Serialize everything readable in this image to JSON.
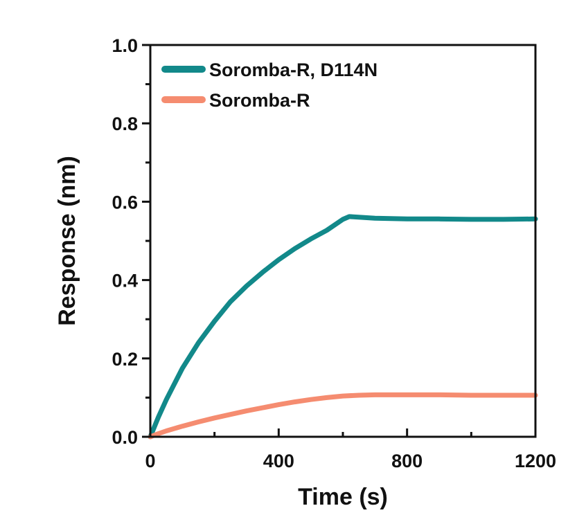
{
  "chart_data": {
    "type": "line",
    "title": "",
    "xlabel": "Time (s)",
    "ylabel": "Response (nm)",
    "xlim": [
      0,
      1200
    ],
    "ylim": [
      0,
      1.0
    ],
    "xticks": [
      0,
      400,
      800,
      1200
    ],
    "xtick_labels": [
      "0",
      "400",
      "800",
      "1200"
    ],
    "yticks": [
      0,
      0.2,
      0.4,
      0.6,
      0.8,
      1.0
    ],
    "ytick_labels": [
      "0.0",
      "0.2",
      "0.4",
      "0.6",
      "0.8",
      "1.0"
    ],
    "grid": false,
    "legend_position": "top-left",
    "series": [
      {
        "name": "Soromba-R, D114N",
        "color": "#12898a",
        "x": [
          0,
          25,
          50,
          100,
          150,
          200,
          250,
          300,
          350,
          400,
          450,
          500,
          550,
          600,
          620,
          700,
          800,
          900,
          1000,
          1100,
          1200
        ],
        "y": [
          0.0,
          0.05,
          0.095,
          0.175,
          0.24,
          0.295,
          0.345,
          0.385,
          0.42,
          0.452,
          0.48,
          0.505,
          0.527,
          0.555,
          0.562,
          0.558,
          0.556,
          0.556,
          0.555,
          0.555,
          0.556
        ]
      },
      {
        "name": "Soromba-R",
        "color": "#f58c70",
        "x": [
          0,
          25,
          50,
          100,
          150,
          200,
          250,
          300,
          350,
          400,
          450,
          500,
          550,
          600,
          650,
          700,
          800,
          900,
          1000,
          1100,
          1200
        ],
        "y": [
          0.0,
          0.008,
          0.015,
          0.027,
          0.038,
          0.048,
          0.057,
          0.066,
          0.074,
          0.082,
          0.089,
          0.095,
          0.1,
          0.104,
          0.106,
          0.107,
          0.107,
          0.107,
          0.106,
          0.106,
          0.106
        ]
      }
    ]
  }
}
